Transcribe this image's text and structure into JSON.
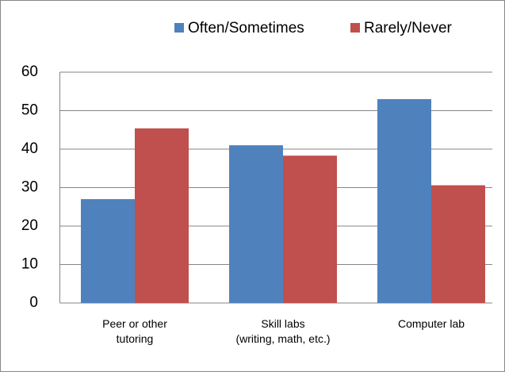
{
  "chart_data": {
    "type": "bar",
    "categories": [
      "Peer or other\ntutoring",
      "Skill labs\n(writing, math, etc.)",
      "Computer lab"
    ],
    "series": [
      {
        "name": "Often/Sometimes",
        "color": "#4f81bd",
        "values": [
          27,
          41,
          53
        ]
      },
      {
        "name": "Rarely/Never",
        "color": "#c0504d",
        "values": [
          45.4,
          38.3,
          30.6
        ]
      }
    ],
    "ylim": [
      0,
      60
    ],
    "yticks": [
      0,
      10,
      20,
      30,
      40,
      50,
      60
    ],
    "grid": true,
    "legend": "top"
  }
}
